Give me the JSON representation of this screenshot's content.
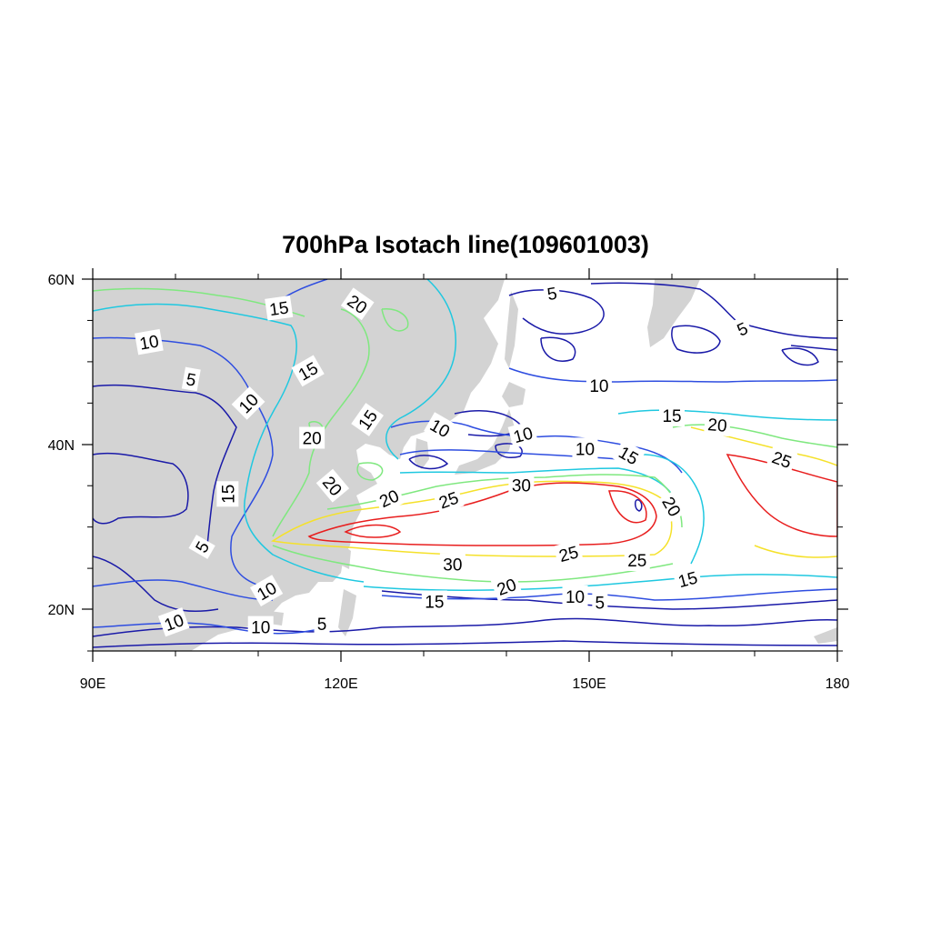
{
  "title": "700hPa Isotach line(109601003)",
  "map": {
    "lon_range": [
      90,
      180
    ],
    "lat_range": [
      15,
      60
    ],
    "land_color": "#d3d3d3",
    "ocean_color": "#ffffff",
    "x_ticks": [
      "90E",
      "120E",
      "150E",
      "180"
    ],
    "y_ticks": [
      "60N",
      "40N",
      "20N"
    ]
  },
  "contour_levels": [
    5,
    10,
    15,
    20,
    25,
    30
  ],
  "contour_colors": {
    "5": "#1a1aa8",
    "10": "#2e4de0",
    "15": "#1fc8e0",
    "20": "#7fe87f",
    "25": "#f5e12a",
    "30": "#e81e1e"
  },
  "contour_labels": [
    {
      "text": "15",
      "lon": 112.5,
      "lat": 56.5,
      "rot": -8
    },
    {
      "text": "20",
      "lon": 122.0,
      "lat": 57.0,
      "rot": 35
    },
    {
      "text": "5",
      "lon": 145.5,
      "lat": 58.3,
      "rot": -10
    },
    {
      "text": "5",
      "lon": 168.5,
      "lat": 54.0,
      "rot": -25
    },
    {
      "text": "10",
      "lon": 96.8,
      "lat": 52.4,
      "rot": -10
    },
    {
      "text": "15",
      "lon": 116.0,
      "lat": 48.9,
      "rot": -30
    },
    {
      "text": "5",
      "lon": 101.9,
      "lat": 47.9,
      "rot": 10
    },
    {
      "text": "10",
      "lon": 108.8,
      "lat": 45.0,
      "rot": -45
    },
    {
      "text": "10",
      "lon": 151.2,
      "lat": 47.1,
      "rot": 0
    },
    {
      "text": "15",
      "lon": 160.0,
      "lat": 43.5,
      "rot": 0
    },
    {
      "text": "20",
      "lon": 165.5,
      "lat": 42.4,
      "rot": 5
    },
    {
      "text": "15",
      "lon": 123.2,
      "lat": 43.0,
      "rot": -55
    },
    {
      "text": "10",
      "lon": 132.0,
      "lat": 42.0,
      "rot": 30
    },
    {
      "text": "10",
      "lon": 142.0,
      "lat": 41.2,
      "rot": -15
    },
    {
      "text": "20",
      "lon": 116.5,
      "lat": 40.8,
      "rot": 0
    },
    {
      "text": "10",
      "lon": 149.5,
      "lat": 39.5,
      "rot": 0
    },
    {
      "text": "15",
      "lon": 154.8,
      "lat": 38.7,
      "rot": 30
    },
    {
      "text": "25",
      "lon": 173.3,
      "lat": 38.2,
      "rot": 20
    },
    {
      "text": "20",
      "lon": 119.0,
      "lat": 35.0,
      "rot": 50
    },
    {
      "text": "15",
      "lon": 106.3,
      "lat": 34.0,
      "rot": -90
    },
    {
      "text": "30",
      "lon": 141.8,
      "lat": 35.1,
      "rot": 0
    },
    {
      "text": "20",
      "lon": 125.8,
      "lat": 33.5,
      "rot": -25
    },
    {
      "text": "25",
      "lon": 133.0,
      "lat": 33.3,
      "rot": -20
    },
    {
      "text": "20",
      "lon": 160.0,
      "lat": 32.5,
      "rot": 60
    },
    {
      "text": "5",
      "lon": 103.2,
      "lat": 27.6,
      "rot": -60
    },
    {
      "text": "25",
      "lon": 147.5,
      "lat": 26.8,
      "rot": -15
    },
    {
      "text": "25",
      "lon": 155.8,
      "lat": 26.0,
      "rot": 0
    },
    {
      "text": "30",
      "lon": 133.5,
      "lat": 25.5,
      "rot": 0
    },
    {
      "text": "15",
      "lon": 161.9,
      "lat": 23.7,
      "rot": -15
    },
    {
      "text": "10",
      "lon": 111.0,
      "lat": 22.3,
      "rot": -30
    },
    {
      "text": "20",
      "lon": 140.0,
      "lat": 22.8,
      "rot": -20
    },
    {
      "text": "10",
      "lon": 148.3,
      "lat": 21.6,
      "rot": 0
    },
    {
      "text": "5",
      "lon": 151.3,
      "lat": 20.9,
      "rot": 0
    },
    {
      "text": "15",
      "lon": 131.3,
      "lat": 21.0,
      "rot": 0
    },
    {
      "text": "10",
      "lon": 99.8,
      "lat": 18.5,
      "rot": -20
    },
    {
      "text": "10",
      "lon": 110.3,
      "lat": 17.9,
      "rot": 0
    },
    {
      "text": "5",
      "lon": 117.7,
      "lat": 18.3,
      "rot": 0
    }
  ]
}
